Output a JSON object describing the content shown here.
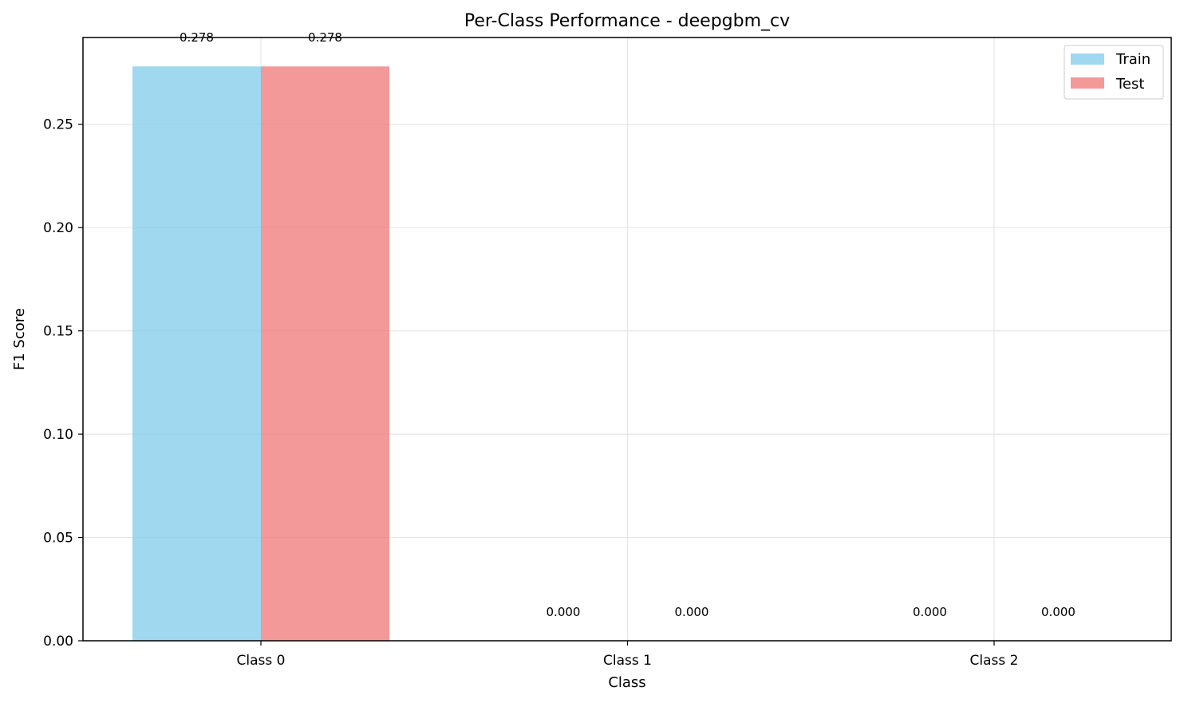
{
  "chart_data": {
    "type": "bar",
    "title": "Per-Class Performance - deepgbm_cv",
    "xlabel": "Class",
    "ylabel": "F1 Score",
    "categories": [
      "Class 0",
      "Class 1",
      "Class 2"
    ],
    "series": [
      {
        "name": "Train",
        "values": [
          0.278,
          0.0,
          0.0
        ],
        "labels": [
          "0.278",
          "0.000",
          "0.000"
        ],
        "color": "#87ceeb"
      },
      {
        "name": "Test",
        "values": [
          0.278,
          0.0,
          0.0
        ],
        "labels": [
          "0.278",
          "0.000",
          "0.000"
        ],
        "color": "#f08080"
      }
    ],
    "ylim": [
      0,
      0.292
    ],
    "yticks": [
      0.0,
      0.05,
      0.1,
      0.15,
      0.2,
      0.25
    ],
    "ytick_labels": [
      "0.00",
      "0.05",
      "0.10",
      "0.15",
      "0.20",
      "0.25"
    ],
    "grid": true,
    "legend_position": "top-right"
  }
}
